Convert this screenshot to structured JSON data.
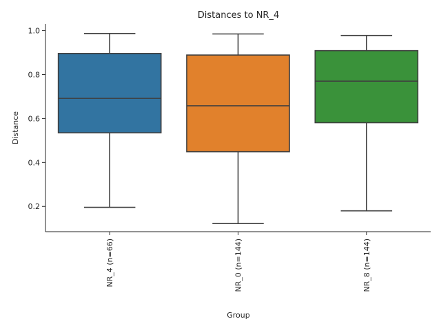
{
  "chart_data": {
    "type": "box",
    "title": "Distances to NR_4",
    "xlabel": "Group",
    "ylabel": "Distance",
    "ylim": [
      0.085,
      1.03
    ],
    "yticks": [
      0.2,
      0.4,
      0.6,
      0.8,
      1.0
    ],
    "ytick_labels": [
      "0.2",
      "0.4",
      "0.6",
      "0.8",
      "1.0"
    ],
    "grid": false,
    "categories": [
      "NR_4 (n=66)",
      "NR_0 (n=144)",
      "NR_8 (n=144)"
    ],
    "boxes": [
      {
        "category": "NR_4 (n=66)",
        "whisker_low": 0.196,
        "q1": 0.535,
        "median": 0.692,
        "q3": 0.896,
        "whisker_high": 0.987,
        "color": "#3274a1"
      },
      {
        "category": "NR_0 (n=144)",
        "whisker_low": 0.122,
        "q1": 0.449,
        "median": 0.658,
        "q3": 0.889,
        "whisker_high": 0.985,
        "color": "#e1812c"
      },
      {
        "category": "NR_8 (n=144)",
        "whisker_low": 0.18,
        "q1": 0.581,
        "median": 0.77,
        "q3": 0.909,
        "whisker_high": 0.978,
        "color": "#3a923a"
      }
    ]
  }
}
